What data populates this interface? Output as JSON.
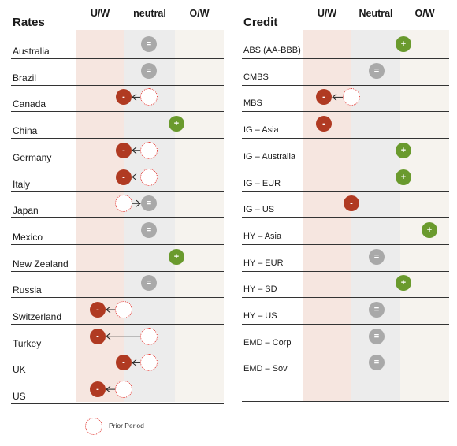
{
  "colors": {
    "underweight": "#b03a22",
    "neutral": "#a9a9a9",
    "overweight": "#6a9a2d",
    "prior": "#e0302a",
    "band_underweight": "#f6e6e0",
    "band_neutral": "#ececec",
    "band_overweight": "#f6f3ee"
  },
  "legend": {
    "prior_period_label": "Prior Period"
  },
  "rates": {
    "title": "Rates",
    "headers": [
      "U/W",
      "neutral",
      "O/W"
    ],
    "rows": [
      {
        "label": "Australia",
        "current": "neutral",
        "prior": null
      },
      {
        "label": "Brazil",
        "current": "neutral",
        "prior": null
      },
      {
        "label": "Canada",
        "current": "underweight",
        "prior": "neutral"
      },
      {
        "label": "China",
        "current": "overweight",
        "prior": null
      },
      {
        "label": "Germany",
        "current": "underweight",
        "prior": "neutral"
      },
      {
        "label": "Italy",
        "current": "underweight",
        "prior": "neutral"
      },
      {
        "label": "Japan",
        "current": "neutral",
        "prior": "underweight"
      },
      {
        "label": "Mexico",
        "current": "neutral",
        "prior": null
      },
      {
        "label": "New Zealand",
        "current": "overweight",
        "prior": null
      },
      {
        "label": "Russia",
        "current": "neutral",
        "prior": null
      },
      {
        "label": "Switzerland",
        "current": "underweight",
        "prior": "underweight"
      },
      {
        "label": "Turkey",
        "current": "underweight",
        "prior": "neutral"
      },
      {
        "label": "UK",
        "current": "underweight",
        "prior": "neutral"
      },
      {
        "label": "US",
        "current": "underweight",
        "prior": "underweight"
      }
    ]
  },
  "credit": {
    "title": "Credit",
    "headers": [
      "U/W",
      "Neutral",
      "O/W"
    ],
    "rows": [
      {
        "label": "ABS (AA-BBB)",
        "current": "overweight",
        "prior": null
      },
      {
        "label": "CMBS",
        "current": "neutral",
        "prior": null
      },
      {
        "label": "MBS",
        "current": "underweight",
        "prior": "underweight"
      },
      {
        "label": "IG – Asia",
        "current": "underweight",
        "prior": null
      },
      {
        "label": "IG – Australia",
        "current": "overweight",
        "prior": null
      },
      {
        "label": "IG – EUR",
        "current": "overweight",
        "prior": null
      },
      {
        "label": "IG – US",
        "current": "underweight",
        "prior": null
      },
      {
        "label": "HY – Asia",
        "current": "overweight",
        "prior": null
      },
      {
        "label": "HY – EUR",
        "current": "neutral",
        "prior": null
      },
      {
        "label": "HY – SD",
        "current": "overweight",
        "prior": null
      },
      {
        "label": "HY – US",
        "current": "neutral",
        "prior": null
      },
      {
        "label": "EMD – Corp",
        "current": "neutral",
        "prior": null
      },
      {
        "label": "EMD – Sov",
        "current": "neutral",
        "prior": null
      }
    ]
  },
  "symbols": {
    "underweight": "-",
    "neutral": "=",
    "overweight": "+"
  }
}
